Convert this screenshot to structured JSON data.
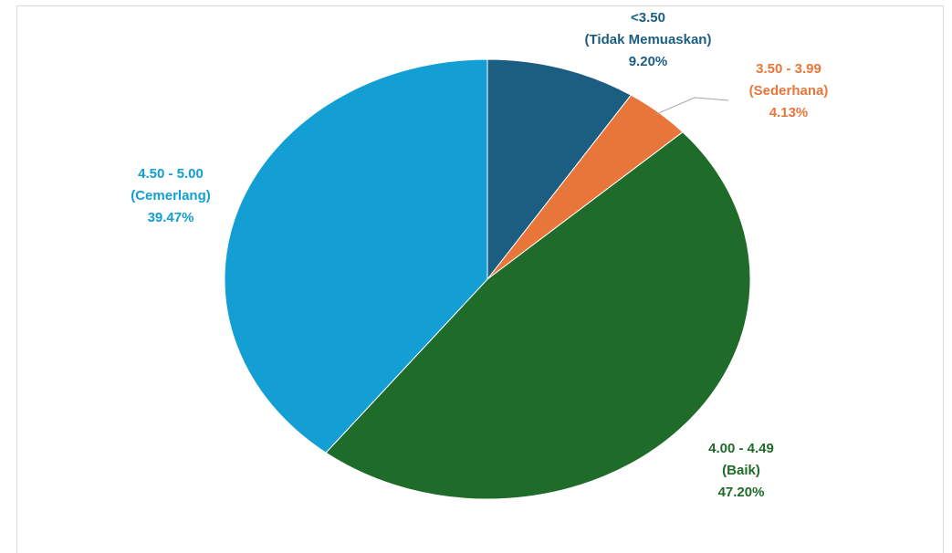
{
  "chart_data": {
    "type": "pie",
    "start_angle_deg": 0,
    "direction": "clockwise",
    "slices": [
      {
        "category": "<3.50",
        "description": "(Tidak Memuaskan)",
        "value": 9.2,
        "value_label": "9.20%",
        "color": "#1b5e82",
        "label_color": "#1b5e82"
      },
      {
        "category": "3.50 - 3.99",
        "description": "(Sederhana)",
        "value": 4.13,
        "value_label": "4.13%",
        "color": "#e8763a",
        "label_color": "#e8763a"
      },
      {
        "category": "4.00 - 4.49",
        "description": "(Baik)",
        "value": 47.2,
        "value_label": "47.20%",
        "color": "#1f6b29",
        "label_color": "#1f6b29"
      },
      {
        "category": "4.50 - 5.00",
        "description": "(Cemerlang)",
        "value": 39.47,
        "value_label": "39.47%",
        "color": "#139ed4",
        "label_color": "#139ed4"
      }
    ]
  }
}
